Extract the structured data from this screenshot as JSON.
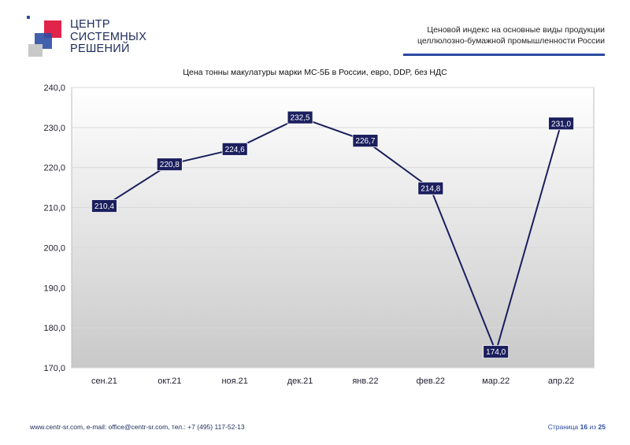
{
  "logo": {
    "line1": "ЦЕНТР",
    "line2": "СИСТЕМНЫХ",
    "line3": "РЕШЕНИЙ",
    "colors": {
      "red": "#e1244a",
      "blue": "#2e4fa3",
      "grey": "#c8c8c8"
    }
  },
  "header": {
    "line1": "Ценовой индекс на основные виды продукции",
    "line2": "целлюлозно-бумажной промышленности России"
  },
  "chart_data": {
    "type": "line",
    "title": "Цена тонны макулатуры марки МС-5Б в России, евро, DDP, без НДС",
    "categories": [
      "сен.21",
      "окт.21",
      "ноя.21",
      "дек.21",
      "янв.22",
      "фев.22",
      "мар.22",
      "апр.22"
    ],
    "values": [
      210.4,
      220.8,
      224.6,
      232.5,
      226.7,
      214.8,
      174.0,
      231.0
    ],
    "value_labels": [
      "210,4",
      "220,8",
      "224,6",
      "232,5",
      "226,7",
      "214,8",
      "174,0",
      "231,0"
    ],
    "y_ticks": [
      "170,0",
      "180,0",
      "190,0",
      "200,0",
      "210,0",
      "220,0",
      "230,0",
      "240,0"
    ],
    "ylim": [
      170,
      240
    ],
    "grid": true,
    "line_color": "#1b1f5e",
    "label_bg": "#1b1f5e"
  },
  "footer": {
    "contacts": "www.centr-sr.com, e-mail: office@centr-sr.com, тел.: +7 (495) 117-52-13",
    "page_prefix": "Страница",
    "page_current": "16",
    "page_sep": "из",
    "page_total": "25"
  }
}
